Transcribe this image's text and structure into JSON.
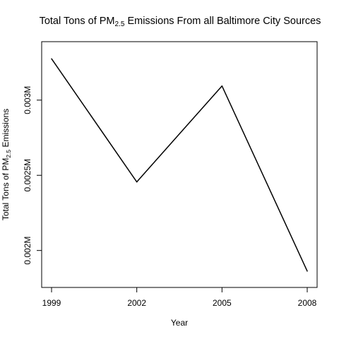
{
  "chart_data": {
    "type": "line",
    "title": {
      "prefix": "Total Tons of PM",
      "subscript": "2.5",
      "suffix": " Emissions From all Baltimore City Sources"
    },
    "xlabel": "Year",
    "ylabel": {
      "prefix": "Total Tons of PM",
      "subscript": "2.5",
      "suffix": " Emissions"
    },
    "x": [
      1999,
      2002,
      2005,
      2008
    ],
    "x_tick_labels": [
      "1999",
      "2002",
      "2005",
      "2008"
    ],
    "values": [
      0.003275,
      0.002456,
      0.003094,
      0.001863
    ],
    "y_ticks": [
      0.002,
      0.0025,
      0.003
    ],
    "y_tick_labels": [
      "0.002M",
      "0.0025M",
      "0.003M"
    ],
    "xlim": [
      1999,
      2008
    ],
    "ylim": [
      0.00182,
      0.00333
    ],
    "grid": false,
    "line_color": "#000000"
  }
}
